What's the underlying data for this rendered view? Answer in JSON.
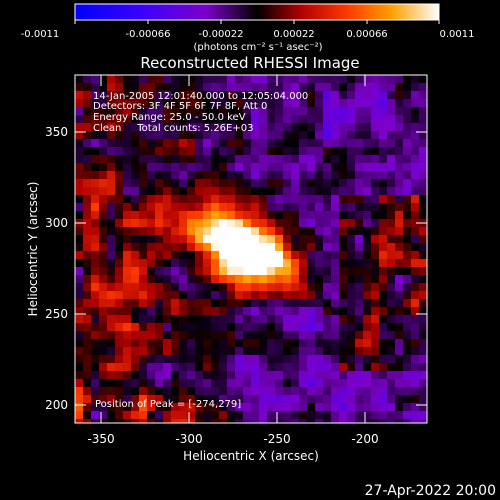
{
  "colorbar": {
    "tick_labels": [
      "-0.0011",
      "-0.00066",
      "-0.00022",
      "0.00022",
      "0.00066",
      "0.0011"
    ],
    "unit_label": "(photons cm⁻² s⁻¹ asec⁻²)"
  },
  "title": "Reconstructed RHESSI Image",
  "info": {
    "time": "14-Jan-2005 12:01:40.000 to 12:05:04.000",
    "detectors": "Detectors: 3F 4F 5F 6F 7F 8F, Att 0",
    "energy": "Energy Range: 25.0 - 50.0 keV",
    "clean": "Clean     Total counts: 5.26E+03"
  },
  "peak_label": "Position of Peak = [-274,279]",
  "axes": {
    "xlabel": "Heliocentric X (arcsec)",
    "ylabel": "Heliocentric Y (arcsec)",
    "x_ticks": [
      "-350",
      "-300",
      "-250",
      "-200"
    ],
    "y_ticks": [
      "350",
      "300",
      "250",
      "200"
    ]
  },
  "footer_date": "27-Apr-2022 20:00"
}
